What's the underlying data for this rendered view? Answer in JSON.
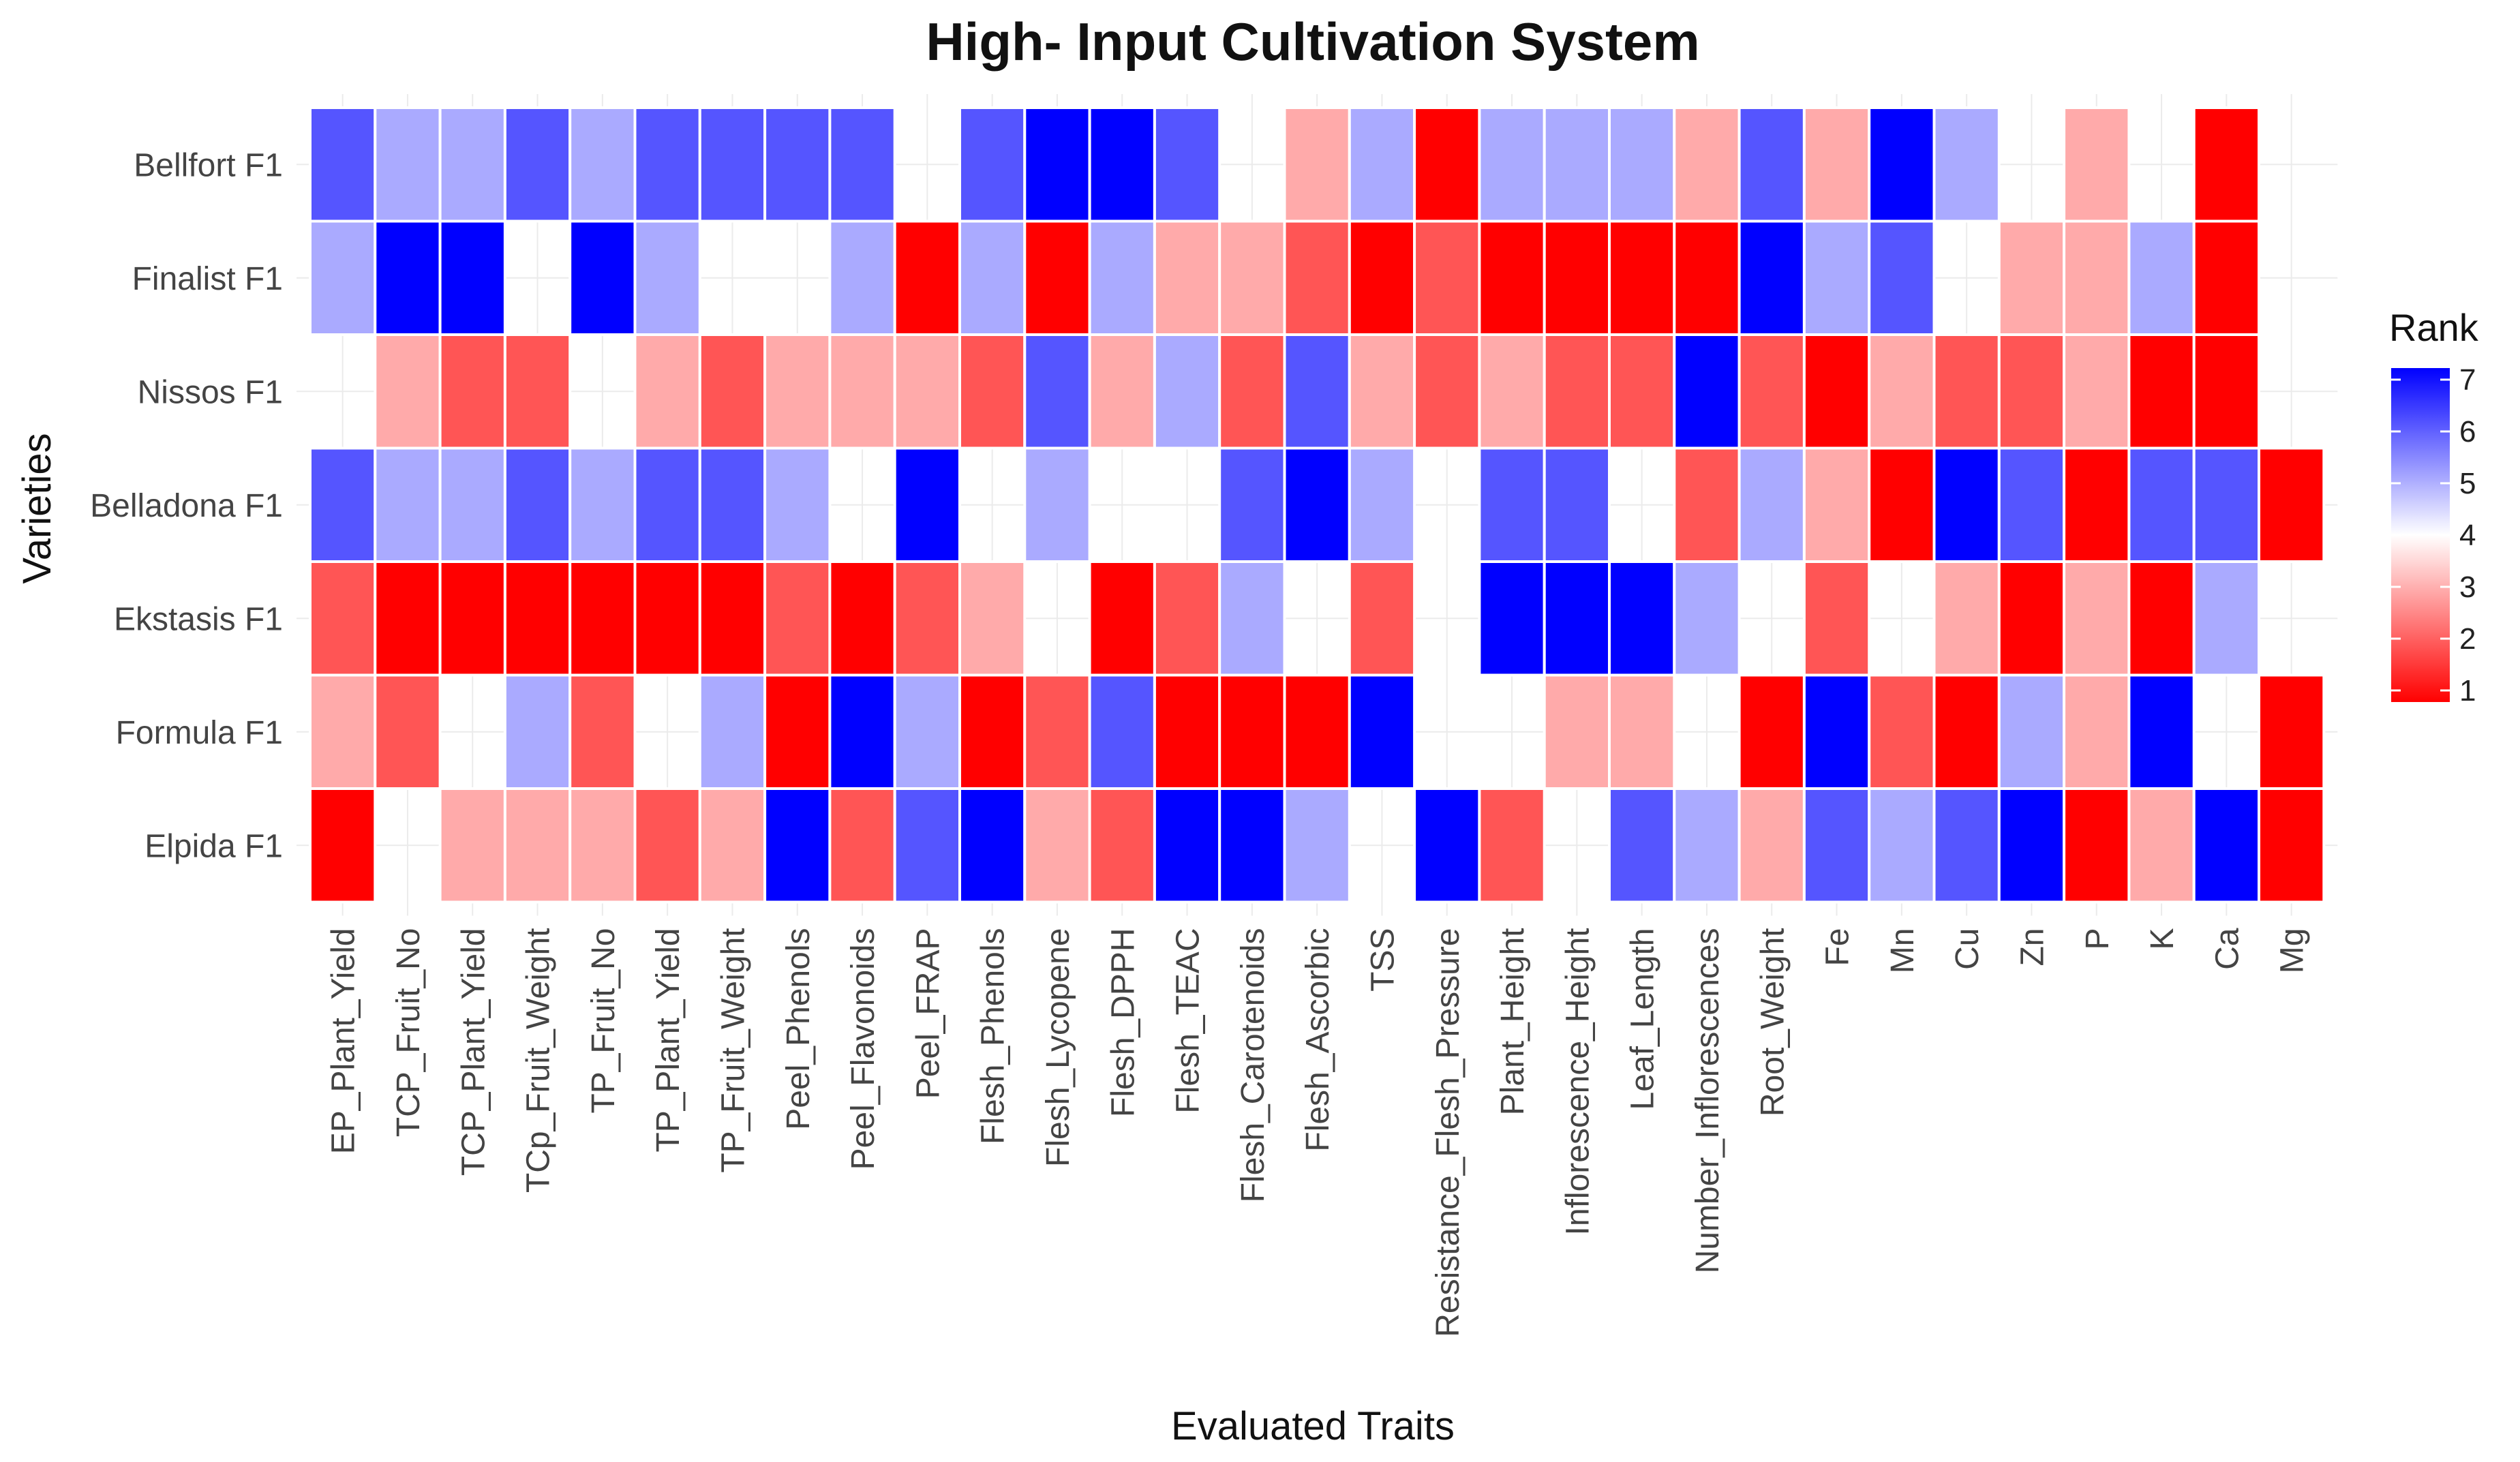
{
  "chart_data": {
    "type": "heatmap",
    "title": "High- Input Cultivation System",
    "xlabel": "Evaluated Traits",
    "ylabel": "Varieties",
    "rows": [
      "Bellfort F1",
      "Finalist F1",
      "Nissos F1",
      "Belladona F1",
      "Ekstasis F1",
      "Formula F1",
      "Elpida F1"
    ],
    "columns": [
      "EP_Plant_Yield",
      "TCP_Fruit_No",
      "TCP_Plant_Yield",
      "TCp_Fruit_Weight",
      "TP_Fruit_No",
      "TP_Plant_Yield",
      "TP_Fruit_Weight",
      "Peel_Phenols",
      "Peel_Flavonoids",
      "Peel_FRAP",
      "Flesh_Phenols",
      "Flesh_Lycopene",
      "Flesh_DPPH",
      "Flesh_TEAC",
      "Flesh_Carotenoids",
      "Flesh_Ascorbic",
      "TSS",
      "Resistance_Flesh_Pressure",
      "Plant_Height",
      "Inflorescence_Height",
      "Leaf_Length",
      "Number_Inflorescences",
      "Root_Weight",
      "Fe",
      "Mn",
      "Cu",
      "Zn",
      "P",
      "K",
      "Ca",
      "Mg"
    ],
    "values": [
      [
        6,
        5,
        5,
        6,
        5,
        6,
        6,
        6,
        6,
        4,
        6,
        7,
        7,
        6,
        4,
        3,
        5,
        1,
        5,
        5,
        5,
        3,
        6,
        3,
        7,
        5,
        4,
        3,
        4,
        1,
        4
      ],
      [
        5,
        7,
        7,
        4,
        7,
        5,
        4,
        4,
        5,
        1,
        5,
        1,
        5,
        3,
        3,
        2,
        1,
        2,
        1,
        1,
        1,
        1,
        7,
        5,
        6,
        4,
        3,
        3,
        5,
        1,
        4
      ],
      [
        4,
        3,
        2,
        2,
        4,
        3,
        2,
        3,
        3,
        3,
        2,
        6,
        3,
        5,
        2,
        6,
        3,
        2,
        3,
        2,
        2,
        7,
        2,
        1,
        3,
        2,
        2,
        3,
        1,
        1,
        4
      ],
      [
        6,
        5,
        5,
        6,
        5,
        6,
        6,
        5,
        4,
        7,
        4,
        5,
        4,
        4,
        6,
        7,
        5,
        4,
        6,
        6,
        4,
        2,
        5,
        3,
        1,
        7,
        6,
        1,
        6,
        6,
        1
      ],
      [
        2,
        1,
        1,
        1,
        1,
        1,
        1,
        2,
        1,
        2,
        3,
        4,
        1,
        2,
        5,
        4,
        2,
        4,
        7,
        7,
        7,
        5,
        4,
        2,
        4,
        3,
        1,
        3,
        1,
        5,
        4
      ],
      [
        3,
        2,
        4,
        5,
        2,
        4,
        5,
        1,
        7,
        5,
        1,
        2,
        6,
        1,
        1,
        1,
        7,
        4,
        4,
        3,
        3,
        4,
        1,
        7,
        2,
        1,
        5,
        3,
        7,
        4,
        1
      ],
      [
        1,
        4,
        3,
        3,
        3,
        2,
        3,
        7,
        2,
        6,
        7,
        3,
        2,
        7,
        7,
        5,
        4,
        7,
        2,
        4,
        6,
        5,
        3,
        6,
        5,
        6,
        7,
        1,
        3,
        7,
        1
      ]
    ],
    "legend": {
      "title": "Rank",
      "ticks": [
        7,
        6,
        5,
        4,
        3,
        2,
        1
      ],
      "range": [
        1,
        7
      ],
      "position": "right"
    },
    "colors": {
      "low": "#ff0000",
      "mid": "#ffffff",
      "high": "#0000ff",
      "midpoint": 4
    }
  }
}
